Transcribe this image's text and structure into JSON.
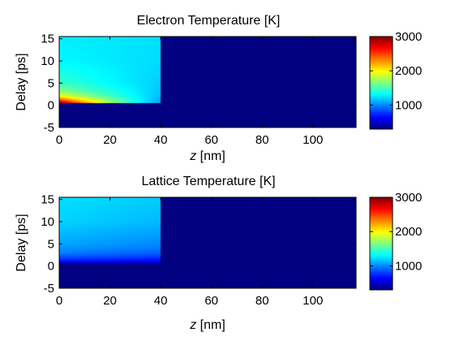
{
  "chart_data": [
    {
      "type": "heatmap",
      "title": "Electron Temperature [K]",
      "xlabel_prefix": "z",
      "xlabel_unit": "[nm]",
      "ylabel": "Delay [ps]",
      "xlim": [
        0,
        117
      ],
      "ylim": [
        -5,
        15.5
      ],
      "xticks": [
        0,
        20,
        40,
        60,
        80,
        100
      ],
      "yticks": [
        -5,
        0,
        5,
        10,
        15
      ],
      "colorbar": {
        "range": [
          300,
          3000
        ],
        "ticks": [
          1000,
          2000,
          3000
        ],
        "colormap": "jet"
      },
      "background_value": 300,
      "sample_extent_nm": 40,
      "excitation_delay_ps": 0.5,
      "profile_samples": [
        {
          "delay": -5,
          "z0": 300,
          "z40": 300
        },
        {
          "delay": 0.5,
          "z0": 3000,
          "z40": 1050
        },
        {
          "delay": 1,
          "z0": 2600,
          "z40": 1090
        },
        {
          "delay": 2,
          "z0": 2000,
          "z40": 1130
        },
        {
          "delay": 3,
          "z0": 1700,
          "z40": 1160
        },
        {
          "delay": 5,
          "z0": 1450,
          "z40": 1180
        },
        {
          "delay": 10,
          "z0": 1300,
          "z40": 1220
        },
        {
          "delay": 15.5,
          "z0": 1270,
          "z40": 1230
        }
      ]
    },
    {
      "type": "heatmap",
      "title": "Lattice Temperature [K]",
      "xlabel_prefix": "z",
      "xlabel_unit": "[nm]",
      "ylabel": "Delay [ps]",
      "xlim": [
        0,
        117
      ],
      "ylim": [
        -5,
        15.5
      ],
      "xticks": [
        0,
        20,
        40,
        60,
        80,
        100
      ],
      "yticks": [
        -5,
        0,
        5,
        10,
        15
      ],
      "colorbar": {
        "range": [
          300,
          3000
        ],
        "ticks": [
          1000,
          2000,
          3000
        ],
        "colormap": "jet"
      },
      "background_value": 300,
      "sample_extent_nm": 40,
      "excitation_delay_ps": 0.5,
      "profile_samples": [
        {
          "delay": -5,
          "z0": 300,
          "z40": 300
        },
        {
          "delay": 0.5,
          "z0": 400,
          "z40": 400
        },
        {
          "delay": 1,
          "z0": 650,
          "z40": 600
        },
        {
          "delay": 2,
          "z0": 850,
          "z40": 780
        },
        {
          "delay": 3,
          "z0": 980,
          "z40": 900
        },
        {
          "delay": 5,
          "z0": 1080,
          "z40": 1000
        },
        {
          "delay": 10,
          "z0": 1200,
          "z40": 1130
        },
        {
          "delay": 15.5,
          "z0": 1230,
          "z40": 1180
        }
      ]
    }
  ]
}
